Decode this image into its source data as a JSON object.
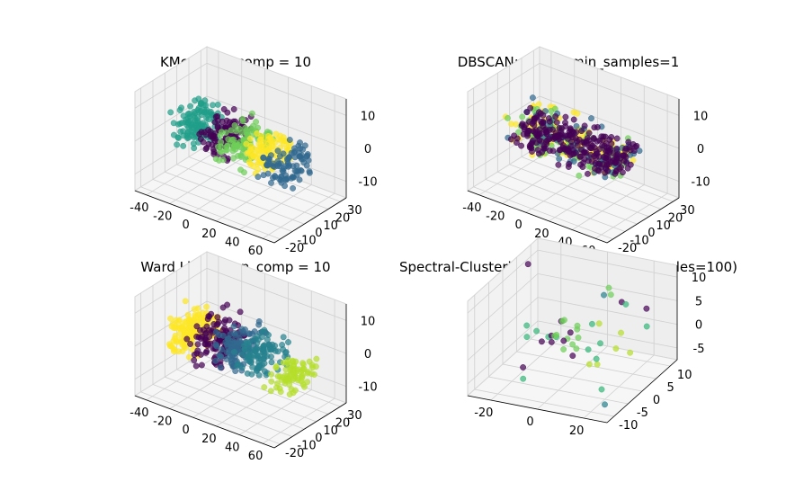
{
  "chart_data": [
    {
      "type": "scatter",
      "title": "KMeans: n_comp = 10",
      "xlim": [
        -40,
        70
      ],
      "ylim": [
        -25,
        30
      ],
      "zlim": [
        -15,
        15
      ],
      "xticks": [
        "-40",
        "-20",
        "0",
        "20",
        "40",
        "60"
      ],
      "yticks": [
        "-20",
        "-10",
        "0",
        "10",
        "20",
        "30"
      ],
      "zticks": [
        "10",
        "0",
        "-10"
      ],
      "palette": [
        "#440154",
        "#482878",
        "#3e4989",
        "#31688e",
        "#26828e",
        "#1f9e89",
        "#35b779",
        "#6ece58",
        "#b5de2b",
        "#fde725"
      ],
      "clusters": [
        {
          "color": "#1f9e89",
          "x": [
            -30,
            -10
          ],
          "y": [
            -10,
            15
          ],
          "z": [
            -6,
            9
          ],
          "count": 120
        },
        {
          "color": "#440154",
          "x": [
            -8,
            12
          ],
          "y": [
            -10,
            15
          ],
          "z": [
            -6,
            9
          ],
          "count": 100
        },
        {
          "color": "#6ece58",
          "x": [
            8,
            30
          ],
          "y": [
            -10,
            15
          ],
          "z": [
            -6,
            9
          ],
          "count": 100
        },
        {
          "color": "#fde725",
          "x": [
            28,
            45
          ],
          "y": [
            -10,
            15
          ],
          "z": [
            -6,
            9
          ],
          "count": 90
        },
        {
          "color": "#31688e",
          "x": [
            40,
            62
          ],
          "y": [
            -10,
            15
          ],
          "z": [
            -8,
            6
          ],
          "count": 90
        }
      ]
    },
    {
      "type": "scatter",
      "title": "DBSCAN: eps=1,min_samples=1",
      "xlim": [
        -40,
        70
      ],
      "ylim": [
        -25,
        30
      ],
      "zlim": [
        -15,
        15
      ],
      "xticks": [
        "-40",
        "-20",
        "0",
        "20",
        "40",
        "60"
      ],
      "yticks": [
        "-20",
        "-10",
        "0",
        "10",
        "20",
        "30"
      ],
      "zticks": [
        "10",
        "0",
        "-10"
      ],
      "clusters": [
        {
          "color": "#fde725",
          "x": [
            -30,
            55
          ],
          "y": [
            -10,
            15
          ],
          "z": [
            -7,
            8
          ],
          "count": 110
        },
        {
          "color": "#6ece58",
          "x": [
            -30,
            55
          ],
          "y": [
            -10,
            15
          ],
          "z": [
            -7,
            8
          ],
          "count": 80
        },
        {
          "color": "#31688e",
          "x": [
            -30,
            58
          ],
          "y": [
            -10,
            15
          ],
          "z": [
            -7,
            8
          ],
          "count": 60
        },
        {
          "color": "#440154",
          "x": [
            -25,
            55
          ],
          "y": [
            -10,
            15
          ],
          "z": [
            -6,
            7
          ],
          "count": 260
        }
      ]
    },
    {
      "type": "scatter",
      "title": "Ward Linkage: n_comp = 10",
      "xlim": [
        -40,
        70
      ],
      "ylim": [
        -25,
        30
      ],
      "zlim": [
        -15,
        15
      ],
      "xticks": [
        "-40",
        "-20",
        "0",
        "20",
        "40",
        "60"
      ],
      "yticks": [
        "-20",
        "-10",
        "0",
        "10",
        "20",
        "30"
      ],
      "zticks": [
        "10",
        "0",
        "-10"
      ],
      "clusters": [
        {
          "color": "#fde725",
          "x": [
            -32,
            -12
          ],
          "y": [
            -10,
            15
          ],
          "z": [
            -8,
            9
          ],
          "count": 140
        },
        {
          "color": "#440154",
          "x": [
            -15,
            10
          ],
          "y": [
            -10,
            15
          ],
          "z": [
            -8,
            9
          ],
          "count": 120
        },
        {
          "color": "#31688e",
          "x": [
            5,
            25
          ],
          "y": [
            -10,
            15
          ],
          "z": [
            -6,
            9
          ],
          "count": 100
        },
        {
          "color": "#26828e",
          "x": [
            20,
            45
          ],
          "y": [
            -10,
            15
          ],
          "z": [
            -6,
            8
          ],
          "count": 100
        },
        {
          "color": "#b5de2b",
          "x": [
            45,
            65
          ],
          "y": [
            -10,
            15
          ],
          "z": [
            -8,
            3
          ],
          "count": 80
        }
      ]
    },
    {
      "type": "scatter",
      "title": "Spectral-Clustering: n_comp=10(n_samples=100)",
      "xlim": [
        -35,
        35
      ],
      "ylim": [
        -12,
        12
      ],
      "zlim": [
        -7,
        12
      ],
      "xticks": [
        "-20",
        "0",
        "20"
      ],
      "yticks": [
        "-10",
        "-5",
        "0",
        "5",
        "10"
      ],
      "zticks": [
        "10",
        "5",
        "0",
        "-5"
      ],
      "points": [
        {
          "x": -34,
          "y": 8,
          "z": 9,
          "color": "#440154"
        },
        {
          "x": -20,
          "y": -2,
          "z": 3,
          "color": "#35b779"
        },
        {
          "x": -18,
          "y": 0,
          "z": 1,
          "color": "#35b779"
        },
        {
          "x": -17,
          "y": -4,
          "z": 2,
          "color": "#35b779"
        },
        {
          "x": -16,
          "y": -6,
          "z": -3,
          "color": "#440154"
        },
        {
          "x": -15,
          "y": 2,
          "z": -1,
          "color": "#35b779"
        },
        {
          "x": -14,
          "y": 4,
          "z": -2,
          "color": "#35b779"
        },
        {
          "x": -13,
          "y": -8,
          "z": -4,
          "color": "#35b779"
        },
        {
          "x": -12,
          "y": 1,
          "z": 0,
          "color": "#440154"
        },
        {
          "x": -11,
          "y": -3,
          "z": 1,
          "color": "#440154"
        },
        {
          "x": -10,
          "y": 3,
          "z": 2,
          "color": "#440154"
        },
        {
          "x": -9,
          "y": -1,
          "z": 0,
          "color": "#440154"
        },
        {
          "x": -8,
          "y": 0,
          "z": 1,
          "color": "#6ece58"
        },
        {
          "x": -7,
          "y": 2,
          "z": 3,
          "color": "#6ece58"
        },
        {
          "x": -6,
          "y": -2,
          "z": 2,
          "color": "#6ece58"
        },
        {
          "x": -5,
          "y": 0,
          "z": 4,
          "color": "#6ece58"
        },
        {
          "x": -4,
          "y": 1,
          "z": 0,
          "color": "#6ece58"
        },
        {
          "x": -3,
          "y": -1,
          "z": -1,
          "color": "#6ece58"
        },
        {
          "x": -2,
          "y": 3,
          "z": 1,
          "color": "#6ece58"
        },
        {
          "x": -1,
          "y": 0,
          "z": 2,
          "color": "#440154"
        },
        {
          "x": 0,
          "y": 2,
          "z": 0,
          "color": "#6ece58"
        },
        {
          "x": 0,
          "y": -3,
          "z": 2,
          "color": "#440154"
        },
        {
          "x": 1,
          "y": 1,
          "z": 3,
          "color": "#6ece58"
        },
        {
          "x": 2,
          "y": 0,
          "z": -1,
          "color": "#6ece58"
        },
        {
          "x": 3,
          "y": -2,
          "z": 1,
          "color": "#6ece58"
        },
        {
          "x": 4,
          "y": 4,
          "z": 2,
          "color": "#35b779"
        },
        {
          "x": 5,
          "y": 2,
          "z": -2,
          "color": "#35b779"
        },
        {
          "x": 6,
          "y": -4,
          "z": 0,
          "color": "#440154"
        },
        {
          "x": 7,
          "y": 6,
          "z": 7,
          "color": "#26828e"
        },
        {
          "x": 8,
          "y": 7,
          "z": 8,
          "color": "#6ece58"
        },
        {
          "x": 9,
          "y": 3,
          "z": 3,
          "color": "#b5de2b"
        },
        {
          "x": 10,
          "y": -1,
          "z": -3,
          "color": "#b5de2b"
        },
        {
          "x": 11,
          "y": 1,
          "z": -4,
          "color": "#b5de2b"
        },
        {
          "x": 12,
          "y": 5,
          "z": 8,
          "color": "#6ece58"
        },
        {
          "x": 13,
          "y": 8,
          "z": 5,
          "color": "#440154"
        },
        {
          "x": 14,
          "y": 0,
          "z": 1,
          "color": "#35b779"
        },
        {
          "x": 15,
          "y": -2,
          "z": -1,
          "color": "#35b779"
        },
        {
          "x": 16,
          "y": 4,
          "z": -2,
          "color": "#b5de2b"
        },
        {
          "x": 18,
          "y": 6,
          "z": 6,
          "color": "#35b779"
        },
        {
          "x": 20,
          "y": 3,
          "z": 2,
          "color": "#b5de2b"
        },
        {
          "x": 22,
          "y": -5,
          "z": -5,
          "color": "#35b779"
        },
        {
          "x": 24,
          "y": 9,
          "z": 4,
          "color": "#440154"
        },
        {
          "x": 26,
          "y": 2,
          "z": -1,
          "color": "#b5de2b"
        },
        {
          "x": 28,
          "y": -8,
          "z": -6,
          "color": "#26828e"
        },
        {
          "x": 30,
          "y": 5,
          "z": 3,
          "color": "#35b779"
        }
      ]
    }
  ]
}
